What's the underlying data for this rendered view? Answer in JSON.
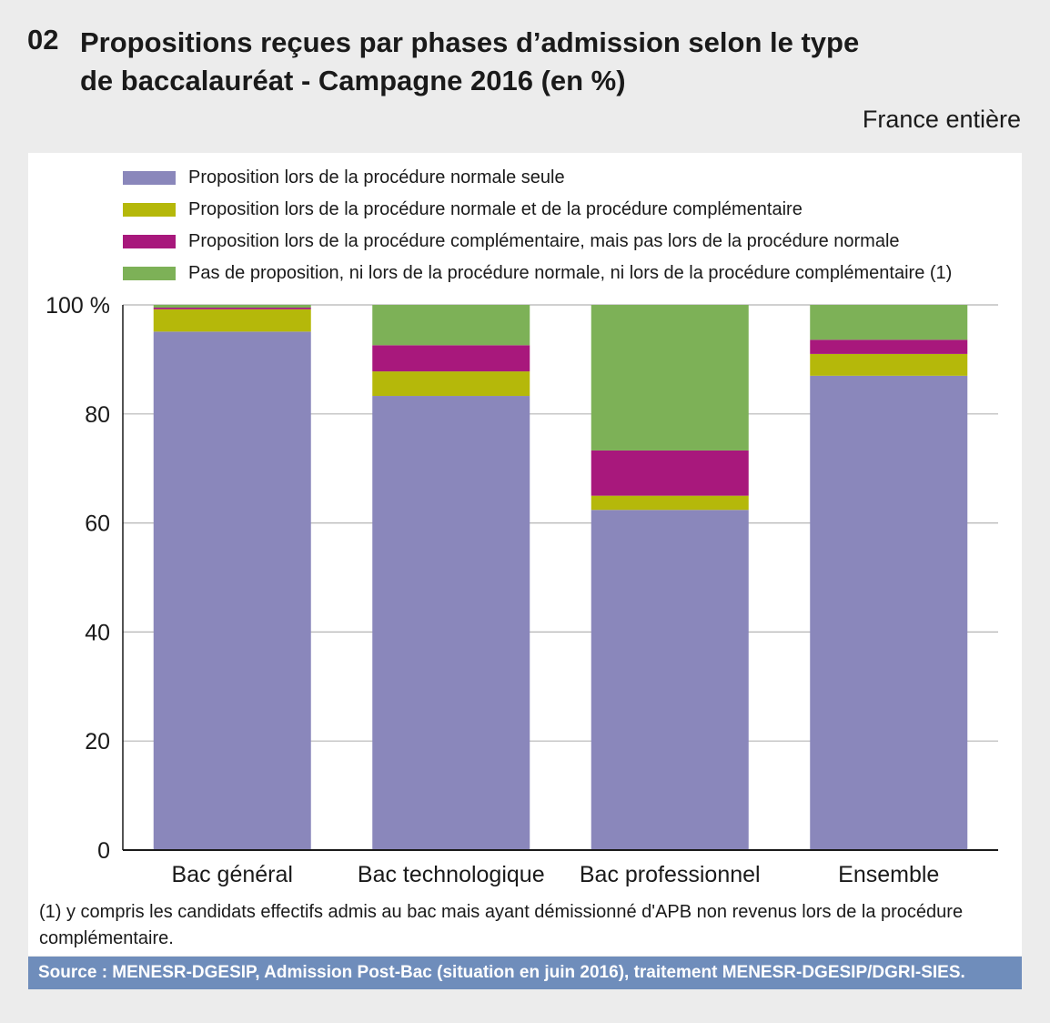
{
  "figure": {
    "number": "02",
    "title": "Propositions reçues par phases d’admission selon le type de baccalauréat - Campagne 2016 (en %)",
    "scope": "France entière",
    "footnote": "(1) y compris les candidats effectifs admis au bac mais ayant démissionné d'APB non revenus lors de la procédure complémentaire.",
    "source": "Source  : MENESR-DGESIP, Admission Post-Bac (situation en juin 2016), traitement MENESR-DGESIP/DGRI-SIES."
  },
  "colors": {
    "background": "#ececec",
    "panel": "#ffffff",
    "source_bar": "#6f8dbb",
    "grid": "#b5b5b5",
    "axis": "#1a1a1a"
  },
  "chart_data": {
    "type": "bar",
    "stacked": true,
    "categories": [
      "Bac général",
      "Bac technologique",
      "Bac professionnel",
      "Ensemble"
    ],
    "series": [
      {
        "name": "Proposition lors de la procédure normale seule",
        "color": "#8a87bb",
        "values": [
          95.1,
          83.3,
          62.4,
          87.0
        ]
      },
      {
        "name": "Proposition lors de la procédure normale et de la procédure complémentaire",
        "color": "#b5b80a",
        "values": [
          4.1,
          4.5,
          2.6,
          4.0
        ]
      },
      {
        "name": "Proposition lors de la procédure complémentaire, mais pas lors de la procédure normale",
        "color": "#a8187c",
        "values": [
          0.3,
          4.8,
          8.3,
          2.6
        ]
      },
      {
        "name": "Pas de proposition, ni lors de la procédure normale, ni lors de la procédure complémentaire (1)",
        "color": "#7db157",
        "values": [
          0.5,
          7.4,
          26.7,
          6.4
        ]
      }
    ],
    "y_ticks": [
      "0",
      "20",
      "40",
      "60",
      "80",
      "100 %"
    ],
    "y_tick_values": [
      0,
      20,
      40,
      60,
      80,
      100
    ],
    "ylim": [
      0,
      100
    ],
    "xlabel": "",
    "ylabel": "",
    "grid": true,
    "legend_position": "top"
  }
}
